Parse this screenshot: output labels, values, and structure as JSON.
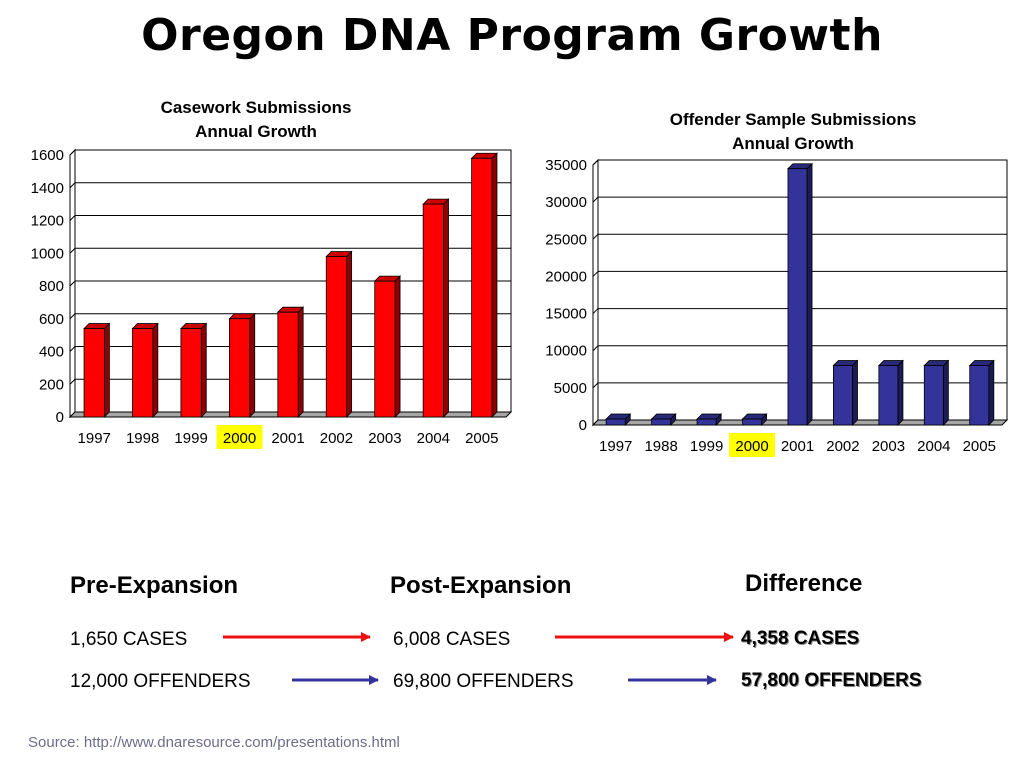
{
  "title": "Oregon DNA Program Growth",
  "colors": {
    "casework_bar": "#ff0000",
    "offender_bar": "#333399",
    "highlight": "#ffff00",
    "red_arrow": "#ee1111",
    "blue_arrow": "#333399"
  },
  "chart_data": [
    {
      "type": "bar",
      "title": "Casework Submissions",
      "subtitle": "Annual Growth",
      "categories": [
        "1997",
        "1998",
        "1999",
        "2000",
        "2001",
        "2002",
        "2003",
        "2004",
        "2005"
      ],
      "values": [
        540,
        540,
        540,
        600,
        640,
        980,
        830,
        1300,
        1580
      ],
      "highlighted_category": "2000",
      "ylim": [
        0,
        1600
      ],
      "yticks": [
        "0",
        "200",
        "400",
        "600",
        "800",
        "1000",
        "1200",
        "1400",
        "1600"
      ],
      "grid": true,
      "bar_color": "#ff0000",
      "style": "3d"
    },
    {
      "type": "bar",
      "title": "Offender Sample Submissions",
      "subtitle": "Annual Growth",
      "categories": [
        "1997",
        "1988",
        "1999",
        "2000",
        "2001",
        "2002",
        "2003",
        "2004",
        "2005"
      ],
      "values": [
        800,
        800,
        800,
        800,
        34500,
        8000,
        8000,
        8000,
        8000
      ],
      "highlighted_category": "2000",
      "ylim": [
        0,
        35000
      ],
      "yticks": [
        "0",
        "5000",
        "10000",
        "15000",
        "20000",
        "25000",
        "30000",
        "35000"
      ],
      "grid": true,
      "bar_color": "#333399",
      "style": "3d"
    }
  ],
  "comparison": {
    "pre_header": "Pre-Expansion",
    "post_header": "Post-Expansion",
    "diff_header": "Difference",
    "rows": [
      {
        "pre": "1,650 CASES",
        "post": "6,008 CASES",
        "diff": "4,358 CASES"
      },
      {
        "pre": "12,000 OFFENDERS",
        "post": "69,800 OFFENDERS",
        "diff": "57,800 OFFENDERS"
      }
    ]
  },
  "source": "Source: http://www.dnaresource.com/presentations.html"
}
